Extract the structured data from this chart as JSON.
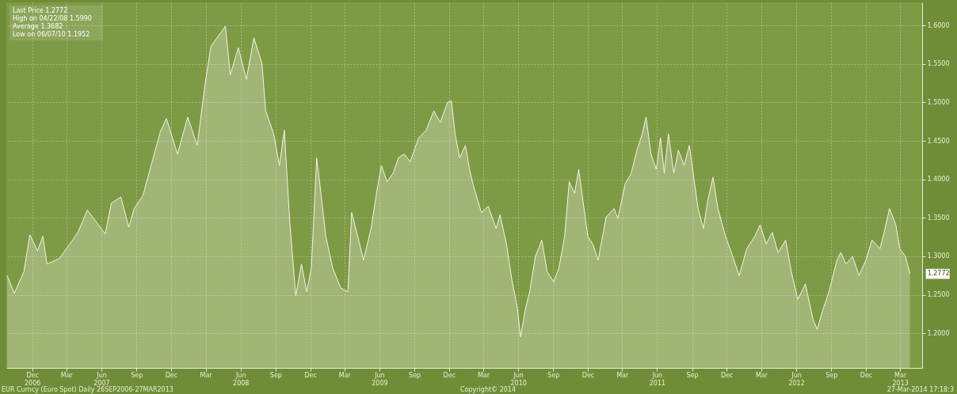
{
  "chart_data": {
    "type": "area",
    "x": [
      "2006-09-26",
      "2006-10-15",
      "2006-11-09",
      "2006-11-25",
      "2006-12-15",
      "2006-12-29",
      "2007-01-09",
      "2007-02-10",
      "2007-03-10",
      "2007-03-31",
      "2007-04-25",
      "2007-05-21",
      "2007-06-11",
      "2007-06-27",
      "2007-07-22",
      "2007-08-12",
      "2007-08-26",
      "2007-09-18",
      "2007-11-03",
      "2007-11-19",
      "2007-12-18",
      "2008-01-14",
      "2008-02-08",
      "2008-02-28",
      "2008-03-15",
      "2008-04-22",
      "2008-05-05",
      "2008-05-26",
      "2008-06-16",
      "2008-07-06",
      "2008-07-27",
      "2008-08-06",
      "2008-08-27",
      "2008-09-11",
      "2008-09-24",
      "2008-10-08",
      "2008-10-24",
      "2008-11-08",
      "2008-11-22",
      "2008-12-04",
      "2008-12-18",
      "2008-12-28",
      "2009-01-11",
      "2009-01-29",
      "2009-02-19",
      "2009-03-10",
      "2009-03-20",
      "2009-04-10",
      "2009-04-20",
      "2009-05-10",
      "2009-05-26",
      "2009-06-06",
      "2009-06-21",
      "2009-07-07",
      "2009-07-21",
      "2009-08-05",
      "2009-08-21",
      "2009-09-12",
      "2009-10-02",
      "2009-10-22",
      "2009-11-08",
      "2009-11-27",
      "2009-12-07",
      "2009-12-17",
      "2009-12-29",
      "2010-01-13",
      "2010-01-24",
      "2010-02-03",
      "2010-02-24",
      "2010-03-14",
      "2010-04-04",
      "2010-04-14",
      "2010-05-01",
      "2010-05-15",
      "2010-05-30",
      "2010-06-07",
      "2010-06-20",
      "2010-07-01",
      "2010-07-16",
      "2010-08-02",
      "2010-08-16",
      "2010-09-02",
      "2010-09-16",
      "2010-10-01",
      "2010-10-13",
      "2010-10-27",
      "2010-11-07",
      "2010-12-01",
      "2010-12-14",
      "2010-12-28",
      "2011-01-18",
      "2011-02-08",
      "2011-02-18",
      "2011-03-09",
      "2011-03-25",
      "2011-04-09",
      "2011-04-23",
      "2011-05-03",
      "2011-05-16",
      "2011-05-30",
      "2011-06-10",
      "2011-06-20",
      "2011-07-01",
      "2011-07-15",
      "2011-07-27",
      "2011-08-11",
      "2011-08-25",
      "2011-09-07",
      "2011-09-17",
      "2011-10-01",
      "2011-10-12",
      "2011-10-26",
      "2011-11-08",
      "2011-11-28",
      "2011-12-12",
      "2012-01-03",
      "2012-01-23",
      "2012-02-13",
      "2012-02-27",
      "2012-03-14",
      "2012-03-30",
      "2012-04-14",
      "2012-05-04",
      "2012-05-19",
      "2012-06-05",
      "2012-06-25",
      "2012-07-15",
      "2012-07-26",
      "2012-08-09",
      "2012-08-26",
      "2012-09-16",
      "2012-09-26",
      "2012-10-10",
      "2012-10-27",
      "2012-11-13",
      "2012-12-01",
      "2012-12-17",
      "2013-01-07",
      "2013-01-18",
      "2013-02-01",
      "2013-02-18",
      "2013-02-28",
      "2013-03-15",
      "2013-03-27"
    ],
    "series": [
      {
        "color": "#f4f4e6",
        "values": [
          1.275,
          1.252,
          1.28,
          1.328,
          1.307,
          1.326,
          1.29,
          1.297,
          1.316,
          1.331,
          1.36,
          1.343,
          1.329,
          1.369,
          1.377,
          1.338,
          1.362,
          1.379,
          1.462,
          1.479,
          1.433,
          1.481,
          1.444,
          1.522,
          1.573,
          1.599,
          1.536,
          1.571,
          1.53,
          1.584,
          1.551,
          1.489,
          1.459,
          1.418,
          1.464,
          1.346,
          1.249,
          1.29,
          1.254,
          1.285,
          1.428,
          1.387,
          1.326,
          1.285,
          1.259,
          1.254,
          1.357,
          1.316,
          1.295,
          1.336,
          1.387,
          1.418,
          1.397,
          1.408,
          1.428,
          1.433,
          1.423,
          1.454,
          1.464,
          1.489,
          1.474,
          1.5,
          1.502,
          1.459,
          1.428,
          1.444,
          1.413,
          1.392,
          1.357,
          1.365,
          1.336,
          1.354,
          1.316,
          1.27,
          1.232,
          1.1952,
          1.232,
          1.254,
          1.3,
          1.321,
          1.28,
          1.267,
          1.285,
          1.326,
          1.397,
          1.382,
          1.413,
          1.326,
          1.316,
          1.295,
          1.351,
          1.362,
          1.349,
          1.394,
          1.408,
          1.438,
          1.459,
          1.481,
          1.433,
          1.413,
          1.454,
          1.408,
          1.459,
          1.408,
          1.438,
          1.418,
          1.444,
          1.397,
          1.362,
          1.336,
          1.372,
          1.403,
          1.362,
          1.326,
          1.307,
          1.275,
          1.31,
          1.326,
          1.341,
          1.316,
          1.331,
          1.305,
          1.321,
          1.28,
          1.244,
          1.264,
          1.218,
          1.205,
          1.229,
          1.254,
          1.295,
          1.305,
          1.29,
          1.3,
          1.275,
          1.295,
          1.321,
          1.31,
          1.331,
          1.362,
          1.341,
          1.31,
          1.3,
          1.2772
        ]
      }
    ],
    "xlim": [
      "2006-09-24",
      "2013-04-28"
    ],
    "xticks": [
      {
        "value": "2006-12-01",
        "label": "Dec\n2006"
      },
      {
        "value": "2007-03-01",
        "label": "Mar"
      },
      {
        "value": "2007-06-01",
        "label": "Jun\n2007"
      },
      {
        "value": "2007-09-01",
        "label": "Sep"
      },
      {
        "value": "2007-12-01",
        "label": "Dec"
      },
      {
        "value": "2008-03-01",
        "label": "Mar"
      },
      {
        "value": "2008-06-01",
        "label": "Jun\n2008"
      },
      {
        "value": "2008-09-01",
        "label": "Sep"
      },
      {
        "value": "2008-12-01",
        "label": "Dec"
      },
      {
        "value": "2009-03-01",
        "label": "Mar"
      },
      {
        "value": "2009-06-01",
        "label": "Jun\n2009"
      },
      {
        "value": "2009-09-01",
        "label": "Sep"
      },
      {
        "value": "2009-12-01",
        "label": "Dec"
      },
      {
        "value": "2010-03-01",
        "label": "Mar"
      },
      {
        "value": "2010-06-01",
        "label": "Jun\n2010"
      },
      {
        "value": "2010-09-01",
        "label": "Sep"
      },
      {
        "value": "2010-12-01",
        "label": "Dec"
      },
      {
        "value": "2011-03-01",
        "label": "Mar"
      },
      {
        "value": "2011-06-01",
        "label": "Jun\n2011"
      },
      {
        "value": "2011-09-01",
        "label": "Sep"
      },
      {
        "value": "2011-12-01",
        "label": "Dec"
      },
      {
        "value": "2012-03-01",
        "label": "Mar"
      },
      {
        "value": "2012-06-01",
        "label": "Jun\n2012"
      },
      {
        "value": "2012-09-01",
        "label": "Sep"
      },
      {
        "value": "2012-12-01",
        "label": "Dec"
      },
      {
        "value": "2013-03-01",
        "label": "Mar\n2013"
      }
    ],
    "ylim": [
      1.155,
      1.63
    ],
    "yticks": [
      {
        "value": 1.2,
        "label": "1.2000"
      },
      {
        "value": 1.25,
        "label": "1.2500"
      },
      {
        "value": 1.3,
        "label": "1.3000"
      },
      {
        "value": 1.35,
        "label": "1.3500"
      },
      {
        "value": 1.4,
        "label": "1.4000"
      },
      {
        "value": 1.45,
        "label": "1.4500"
      },
      {
        "value": 1.5,
        "label": "1.5000"
      },
      {
        "value": 1.55,
        "label": "1.5500"
      },
      {
        "value": 1.6,
        "label": "1.6000"
      }
    ],
    "grid": true,
    "line_style": "solid",
    "annotations": [
      "Last Price 1.2772",
      "High on 04/22/08 1.5990",
      "Average 1.3682",
      "Low on 06/07/10 1.1952",
      "EUR Curncy (Euro Spot)  Daily 26SEP2006-27MAR2013",
      "Copyright© 2014",
      "27-Mar-2014 17:18:3",
      {
        "text": "1.2772",
        "x": "2013-03-27",
        "y": 1.2772
      }
    ]
  }
}
